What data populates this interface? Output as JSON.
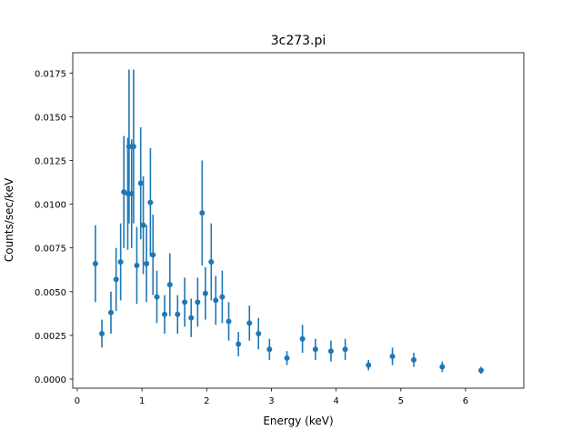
{
  "chart_data": {
    "type": "scatter",
    "title": "3c273.pi",
    "xlabel": "Energy (keV)",
    "ylabel": "Counts/sec/keV",
    "xlim": [
      -0.07,
      6.9
    ],
    "ylim": [
      -0.00052,
      0.01866
    ],
    "xticks": [
      0,
      1,
      2,
      3,
      4,
      5,
      6
    ],
    "xtick_labels": [
      "0",
      "1",
      "2",
      "3",
      "4",
      "5",
      "6"
    ],
    "yticks": [
      0,
      0.0025,
      0.005,
      0.0075,
      0.01,
      0.0125,
      0.015,
      0.0175
    ],
    "ytick_labels": [
      "0.0000",
      "0.0025",
      "0.0050",
      "0.0075",
      "0.0100",
      "0.0125",
      "0.0150",
      "0.0175"
    ],
    "grid": false,
    "color": "#1f77b4",
    "series": [
      {
        "x": [
          0.28,
          0.38,
          0.52,
          0.6,
          0.67,
          0.72,
          0.78,
          0.8,
          0.84,
          0.87,
          0.92,
          0.98,
          1.02,
          1.07,
          1.13,
          1.17,
          1.23,
          1.35,
          1.43,
          1.55,
          1.66,
          1.76,
          1.86,
          1.93,
          1.98,
          2.07,
          2.14,
          2.24,
          2.34,
          2.49,
          2.66,
          2.8,
          2.97,
          3.24,
          3.48,
          3.68,
          3.92,
          4.14,
          4.5,
          4.87,
          5.2,
          5.64,
          6.24
        ],
        "y": [
          0.0066,
          0.0026,
          0.0038,
          0.0057,
          0.0067,
          0.0107,
          0.0106,
          0.0133,
          0.0106,
          0.0133,
          0.0065,
          0.0112,
          0.0088,
          0.0066,
          0.0101,
          0.0071,
          0.0047,
          0.0037,
          0.0054,
          0.0037,
          0.0044,
          0.0035,
          0.0044,
          0.0095,
          0.0049,
          0.0067,
          0.0045,
          0.0047,
          0.0033,
          0.002,
          0.0032,
          0.0026,
          0.0017,
          0.0012,
          0.0023,
          0.0017,
          0.0016,
          0.0017,
          0.0008,
          0.0013,
          0.0011,
          0.0007,
          0.0005
        ],
        "yerr": [
          0.0022,
          0.0008,
          0.0012,
          0.0018,
          0.0022,
          0.0032,
          0.0032,
          0.0044,
          0.0031,
          0.0044,
          0.0022,
          0.0032,
          0.0028,
          0.0022,
          0.0031,
          0.0023,
          0.0015,
          0.0011,
          0.0018,
          0.0011,
          0.0014,
          0.0011,
          0.0014,
          0.003,
          0.0015,
          0.0022,
          0.0014,
          0.0015,
          0.0011,
          0.0007,
          0.001,
          0.0009,
          0.0006,
          0.0004,
          0.0008,
          0.0006,
          0.0006,
          0.0006,
          0.0003,
          0.0005,
          0.0004,
          0.0003,
          0.0002
        ]
      }
    ]
  }
}
